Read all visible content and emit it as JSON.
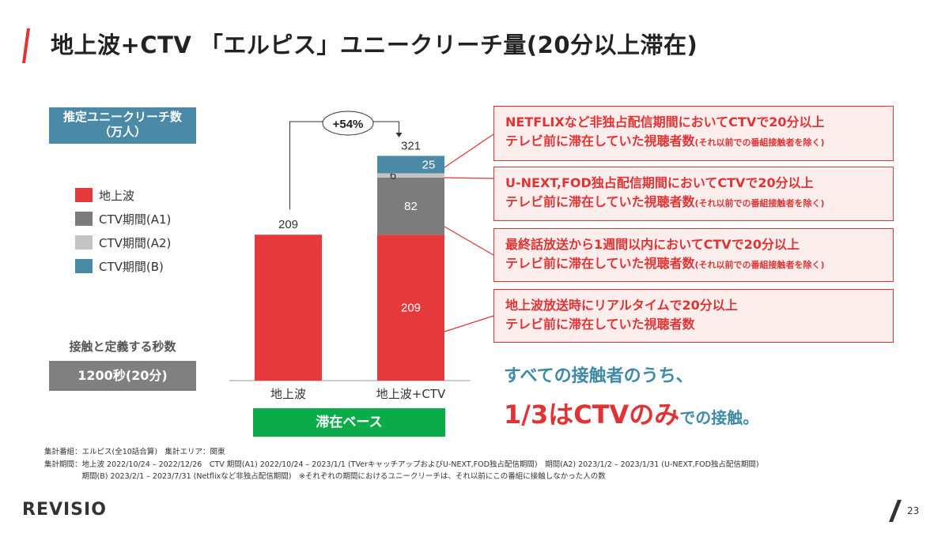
{
  "title": "地上波+CTV 「エルピス」ユニークリーチ量(20分以上滞在)",
  "metric_box": {
    "line1": "推定ユニークリーチ数",
    "line2": "（万人）"
  },
  "contact": {
    "label": "接触と定義する秒数",
    "value": "1200秒(20分)"
  },
  "base_label": "滞在ベース",
  "colors": {
    "terrestrial": "#e5393b",
    "ctv_a1": "#7c7c7c",
    "ctv_a2": "#c4c4c4",
    "ctv_b": "#4a8aa6",
    "accent_red": "#e03434",
    "accent_blue": "#3f8aa9",
    "green": "#0aab48"
  },
  "chart_data": {
    "type": "bar",
    "stacked": true,
    "categories": [
      "地上波",
      "地上波+CTV"
    ],
    "series": [
      {
        "name": "地上波",
        "values": [
          209,
          209
        ]
      },
      {
        "name": "CTV期間(A1)",
        "values": [
          0,
          82
        ]
      },
      {
        "name": "CTV期間(A2)",
        "values": [
          0,
          6
        ]
      },
      {
        "name": "CTV期間(B)",
        "values": [
          0,
          25
        ]
      }
    ],
    "totals": [
      "209",
      "321"
    ],
    "growth_label": "+54%",
    "legend_position": "left",
    "grid": false
  },
  "callouts": [
    {
      "line1": "NETFLIXなど非独占配信期間においてCTVで20分以上",
      "line2": "テレビ前に滞在していた視聴者数",
      "note": "(それ以前での番組接触者を除く)"
    },
    {
      "line1": "U-NEXT,FOD独占配信期間においてCTVで20分以上",
      "line2": "テレビ前に滞在していた視聴者数",
      "note": "(それ以前での番組接触者を除く)"
    },
    {
      "line1": "最終話放送から1週間以内においてCTVで20分以上",
      "line2": "テレビ前に滞在していた視聴者数",
      "note": "(それ以前での番組接触者を除く)"
    },
    {
      "line1": "地上波放送時にリアルタイムで20分以上",
      "line2": "テレビ前に滞在していた視聴者数",
      "note": ""
    }
  ],
  "summary": {
    "line1": "すべての接触者のうち、",
    "big": "1/3はCTVのみ",
    "rest": "での接触。"
  },
  "notes": [
    "集計番組：エルピス(全10話合算)　集計エリア：関東",
    "集計期間：地上波 2022/10/24 – 2022/12/26　CTV 期間(A1) 2022/10/24 – 2023/1/1 (TVerキャッチアップおよびU-NEXT,FOD独占配信期間)　期間(A2) 2023/1/2 – 2023/1/31 (U-NEXT,FOD独占配信期間)",
    "　　　　　期間(B) 2023/2/1 – 2023/7/31 (Netflixなど非独占配信期間)　※それぞれの期間におけるユニークリーチは、それ以前にこの番組に接触しなかった人の数"
  ],
  "logo": "REVISIO",
  "page_number": "23"
}
